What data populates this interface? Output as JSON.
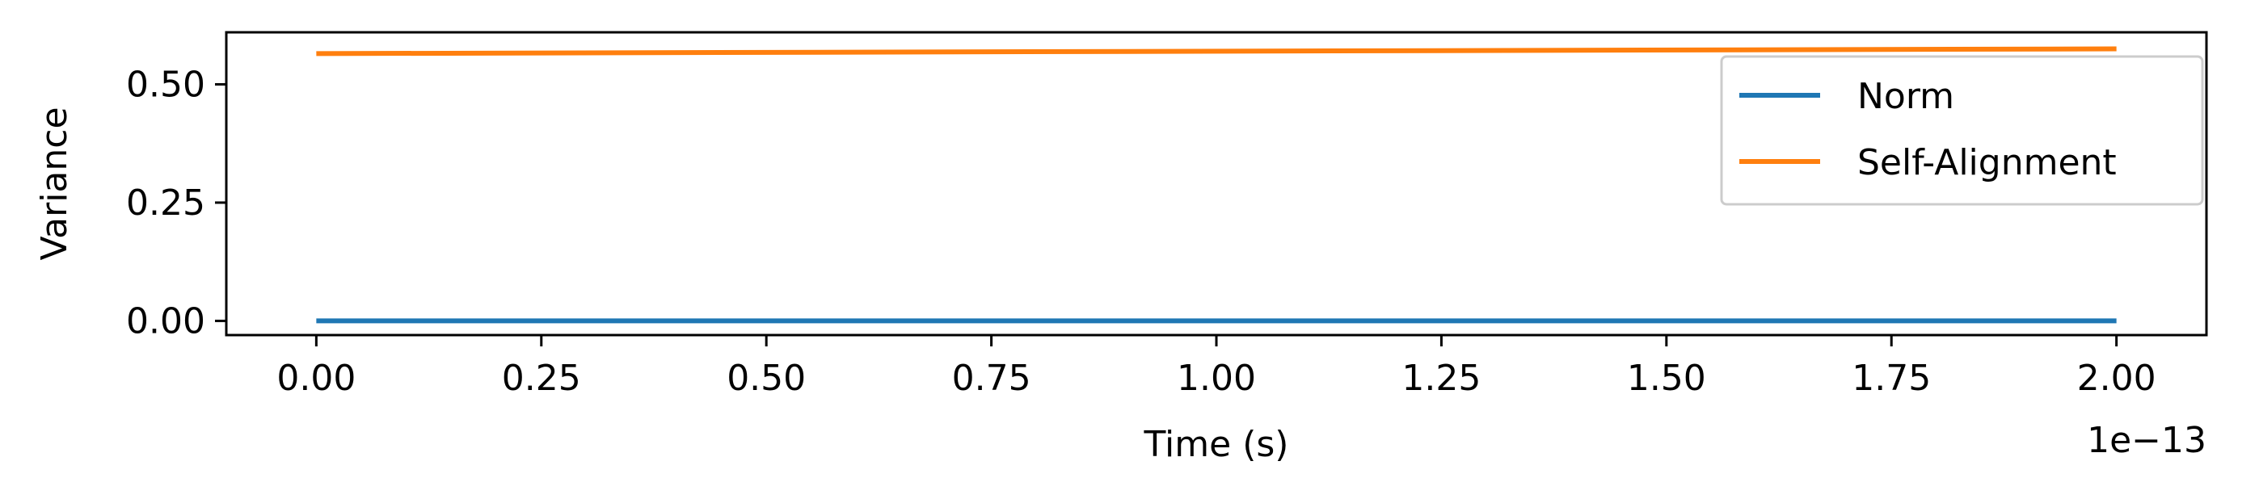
{
  "chart_data": {
    "type": "line",
    "xlabel": "Time (s)",
    "ylabel": "Variance",
    "x_offset_text": "1e−13",
    "xlim": [
      -1e-14,
      2.1e-13
    ],
    "ylim": [
      -0.03,
      0.61
    ],
    "x_ticks": [
      0.0,
      2.5e-14,
      5e-14,
      7.5e-14,
      1e-13,
      1.25e-13,
      1.5e-13,
      1.75e-13,
      2e-13
    ],
    "x_tick_labels": [
      "0.00",
      "0.25",
      "0.50",
      "0.75",
      "1.00",
      "1.25",
      "1.50",
      "1.75",
      "2.00"
    ],
    "y_ticks": [
      0.0,
      0.25,
      0.5
    ],
    "y_tick_labels": [
      "0.00",
      "0.25",
      "0.50"
    ],
    "grid": false,
    "legend_position": "top-right",
    "series": [
      {
        "name": "Norm",
        "color": "#1f77b4",
        "x": [
          0.0,
          2e-13
        ],
        "y": [
          0.0,
          0.0
        ]
      },
      {
        "name": "Self-Alignment",
        "color": "#ff7f0e",
        "x": [
          0.0,
          2e-13
        ],
        "y": [
          0.565,
          0.575
        ]
      }
    ]
  }
}
